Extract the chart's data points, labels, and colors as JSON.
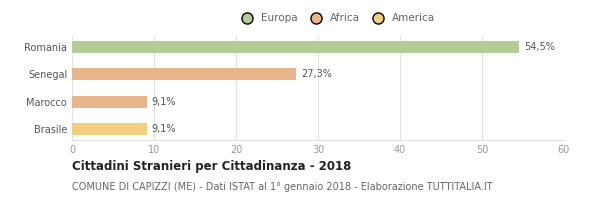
{
  "categories": [
    "Romania",
    "Senegal",
    "Marocco",
    "Brasile"
  ],
  "values": [
    54.5,
    27.3,
    9.1,
    9.1
  ],
  "labels": [
    "54,5%",
    "27,3%",
    "9,1%",
    "9,1%"
  ],
  "colors": [
    "#b5cc96",
    "#e8b48a",
    "#e8b48a",
    "#f0d080"
  ],
  "legend": [
    {
      "label": "Europa",
      "color": "#b5cc96"
    },
    {
      "label": "Africa",
      "color": "#e8b48a"
    },
    {
      "label": "America",
      "color": "#f0d080"
    }
  ],
  "xlim": [
    0,
    60
  ],
  "xticks": [
    0,
    10,
    20,
    30,
    40,
    50,
    60
  ],
  "title": "Cittadini Stranieri per Cittadinanza - 2018",
  "subtitle": "COMUNE DI CAPIZZI (ME) - Dati ISTAT al 1° gennaio 2018 - Elaborazione TUTTITALIA.IT",
  "bg_color": "#ffffff",
  "plot_bg": "#ffffff",
  "grid_color": "#e0e0e0",
  "bar_height": 0.45,
  "title_fontsize": 8.5,
  "subtitle_fontsize": 7,
  "label_fontsize": 7,
  "tick_fontsize": 7,
  "legend_fontsize": 7.5,
  "ytick_color": "#555555",
  "xtick_color": "#999999",
  "label_color": "#555555"
}
